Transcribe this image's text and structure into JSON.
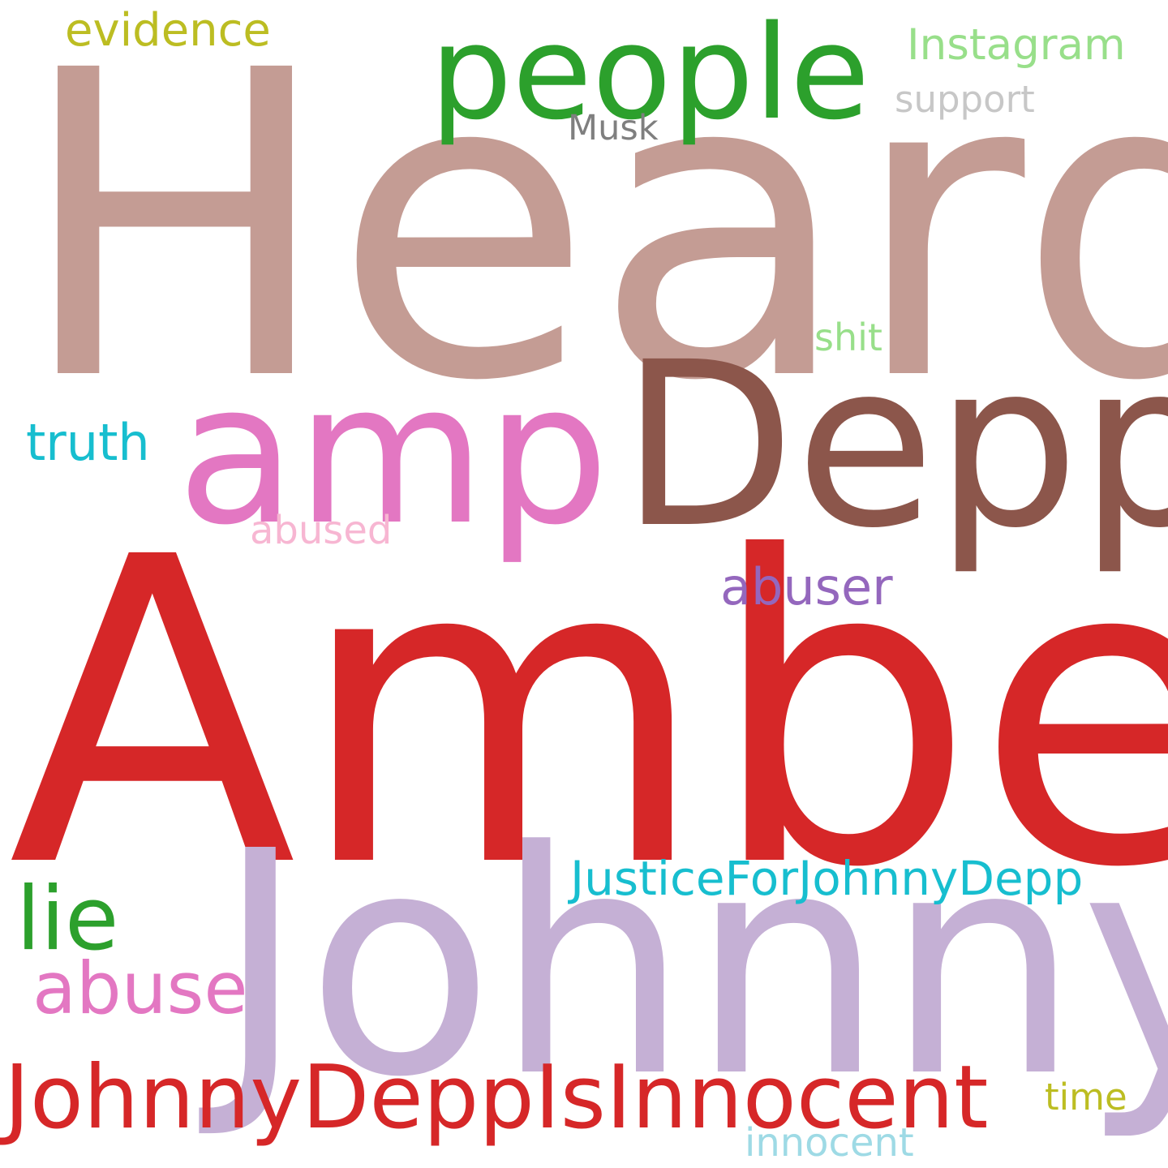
{
  "words": [
    {
      "key": "heard",
      "text": "Heard",
      "color": "#c49c94"
    },
    {
      "key": "amber",
      "text": "Amber",
      "color": "#d62728"
    },
    {
      "key": "johnny",
      "text": "Johnny",
      "color": "#c5b0d5"
    },
    {
      "key": "depp",
      "text": "Depp",
      "color": "#8c564b"
    },
    {
      "key": "amp",
      "text": "amp",
      "color": "#e377c2"
    },
    {
      "key": "people",
      "text": "people",
      "color": "#2ca02c"
    },
    {
      "key": "jdii",
      "text": "JohnnyDeppIsInnocent",
      "color": "#d62728"
    },
    {
      "key": "jfjd",
      "text": "JusticeForJohnnyDepp",
      "color": "#17becf"
    },
    {
      "key": "lie",
      "text": "lie",
      "color": "#2ca02c"
    },
    {
      "key": "abuse",
      "text": "abuse",
      "color": "#e377c2"
    },
    {
      "key": "abuser",
      "text": "abuser",
      "color": "#9467bd"
    },
    {
      "key": "truth",
      "text": "truth",
      "color": "#17becf"
    },
    {
      "key": "abused",
      "text": "abused",
      "color": "#f7b6d2"
    },
    {
      "key": "evidence",
      "text": "evidence",
      "color": "#bcbd22"
    },
    {
      "key": "instagram",
      "text": "Instagram",
      "color": "#98df8a"
    },
    {
      "key": "support",
      "text": "support",
      "color": "#c7c7c7"
    },
    {
      "key": "musk",
      "text": "Musk",
      "color": "#7f7f7f"
    },
    {
      "key": "shit",
      "text": "shit",
      "color": "#98df8a"
    },
    {
      "key": "time",
      "text": "time",
      "color": "#bcbd22"
    },
    {
      "key": "innocent",
      "text": "innocent",
      "color": "#9edae5"
    }
  ]
}
